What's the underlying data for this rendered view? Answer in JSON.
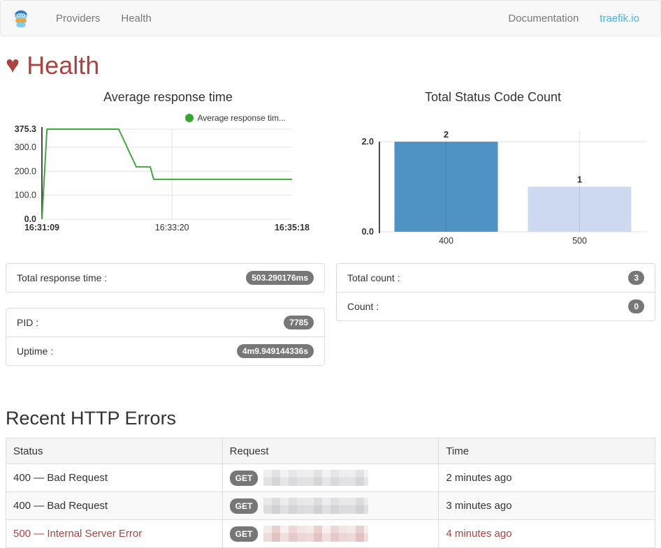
{
  "navbar": {
    "brand_icon": "traefik-logo",
    "links": [
      {
        "label": "Providers"
      },
      {
        "label": "Health"
      }
    ],
    "right_links": [
      {
        "label": "Documentation"
      },
      {
        "label": "traefik.io"
      }
    ]
  },
  "page": {
    "heart_icon": "♥",
    "title": "Health"
  },
  "chart_data": [
    {
      "type": "line",
      "title": "Average response time",
      "legend": "Average response tim...",
      "legend_color": "#35a532",
      "line_color": "#42a542",
      "grid_color": "#e0e0e0",
      "axis_color": "#4a4a4a",
      "xlabel": "",
      "ylabel": "",
      "ylim": [
        0,
        375.3
      ],
      "y_max": 375.3,
      "y_ticks": [
        {
          "v": 0,
          "label": "0.0",
          "bold": true
        },
        {
          "v": 100,
          "label": "100.0",
          "bold": false
        },
        {
          "v": 200,
          "label": "200.0",
          "bold": false
        },
        {
          "v": 300,
          "label": "300.0",
          "bold": false
        },
        {
          "v": 375.3,
          "label": "375.3",
          "bold": true
        }
      ],
      "x_ticks": [
        {
          "f": 0,
          "label": "16:31:09",
          "bold": true
        },
        {
          "f": 0.52,
          "label": "16:33:20",
          "bold": false
        },
        {
          "f": 1,
          "label": "16:35:18",
          "bold": true
        }
      ],
      "points": [
        [
          0,
          0
        ],
        [
          0.02,
          375.3
        ],
        [
          0.307,
          375.3
        ],
        [
          0.377,
          218
        ],
        [
          0.433,
          218
        ],
        [
          0.447,
          166
        ],
        [
          1,
          166
        ]
      ]
    },
    {
      "type": "bar",
      "title": "Total Status Code Count",
      "grid_color": "#e0e0e0",
      "axis_color": "#4a4a4a",
      "xlabel": "",
      "ylabel": "",
      "ylim": [
        0,
        2
      ],
      "y_max": 2,
      "y_ticks": [
        {
          "v": 0,
          "label": "0.0",
          "bold": true
        },
        {
          "v": 2,
          "label": "2.0",
          "bold": true
        }
      ],
      "categories": [
        "400",
        "500"
      ],
      "values": [
        2,
        1
      ],
      "bar_colors": [
        "#4e93c4",
        "#ccd9ef"
      ]
    }
  ],
  "panels": {
    "total_response_time": {
      "label": "Total response time :",
      "value": "503.290176ms"
    },
    "process": [
      {
        "label": "PID :",
        "value": "7785"
      },
      {
        "label": "Uptime :",
        "value": "4m9.949144336s"
      }
    ],
    "counts": [
      {
        "label": "Total count :",
        "value": "3"
      },
      {
        "label": "Count :",
        "value": "0"
      }
    ]
  },
  "errors": {
    "title": "Recent HTTP Errors",
    "headers": [
      "Status",
      "Request",
      "Time"
    ],
    "rows": [
      {
        "status": "400 — Bad Request",
        "method": "GET",
        "request_redacted": true,
        "time": "2 minutes ago",
        "severity": "default"
      },
      {
        "status": "400 — Bad Request",
        "method": "GET",
        "request_redacted": true,
        "time": "3 minutes ago",
        "severity": "default"
      },
      {
        "status": "500 — Internal Server Error",
        "method": "GET",
        "request_redacted": true,
        "time": "4 minutes ago",
        "severity": "danger"
      }
    ]
  },
  "colors": {
    "title_red": "#a94442",
    "danger_text": "#a94442",
    "badge_gray": "#777777",
    "link_blue": "#45b2e8",
    "navbar_bg": "#f8f8f8"
  }
}
